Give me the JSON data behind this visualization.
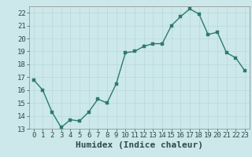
{
  "x": [
    0,
    1,
    2,
    3,
    4,
    5,
    6,
    7,
    8,
    9,
    10,
    11,
    12,
    13,
    14,
    15,
    16,
    17,
    18,
    19,
    20,
    21,
    22,
    23
  ],
  "y": [
    16.8,
    16.0,
    14.3,
    13.1,
    13.7,
    13.6,
    14.3,
    15.3,
    15.0,
    16.5,
    18.9,
    19.0,
    19.4,
    19.6,
    19.6,
    21.0,
    21.7,
    22.3,
    21.9,
    20.3,
    20.5,
    18.9,
    18.5,
    17.5
  ],
  "xlim": [
    -0.5,
    23.5
  ],
  "ylim": [
    13,
    22.5
  ],
  "yticks": [
    13,
    14,
    15,
    16,
    17,
    18,
    19,
    20,
    21,
    22
  ],
  "xticks": [
    0,
    1,
    2,
    3,
    4,
    5,
    6,
    7,
    8,
    9,
    10,
    11,
    12,
    13,
    14,
    15,
    16,
    17,
    18,
    19,
    20,
    21,
    22,
    23
  ],
  "xlabel": "Humidex (Indice chaleur)",
  "line_color": "#2d7a6e",
  "marker_color": "#2d7a6e",
  "bg_color": "#cce8ea",
  "grid_color": "#b8d8da",
  "tick_label_fontsize": 6.5,
  "xlabel_fontsize": 8,
  "marker_size": 2.5,
  "line_width": 1.0
}
